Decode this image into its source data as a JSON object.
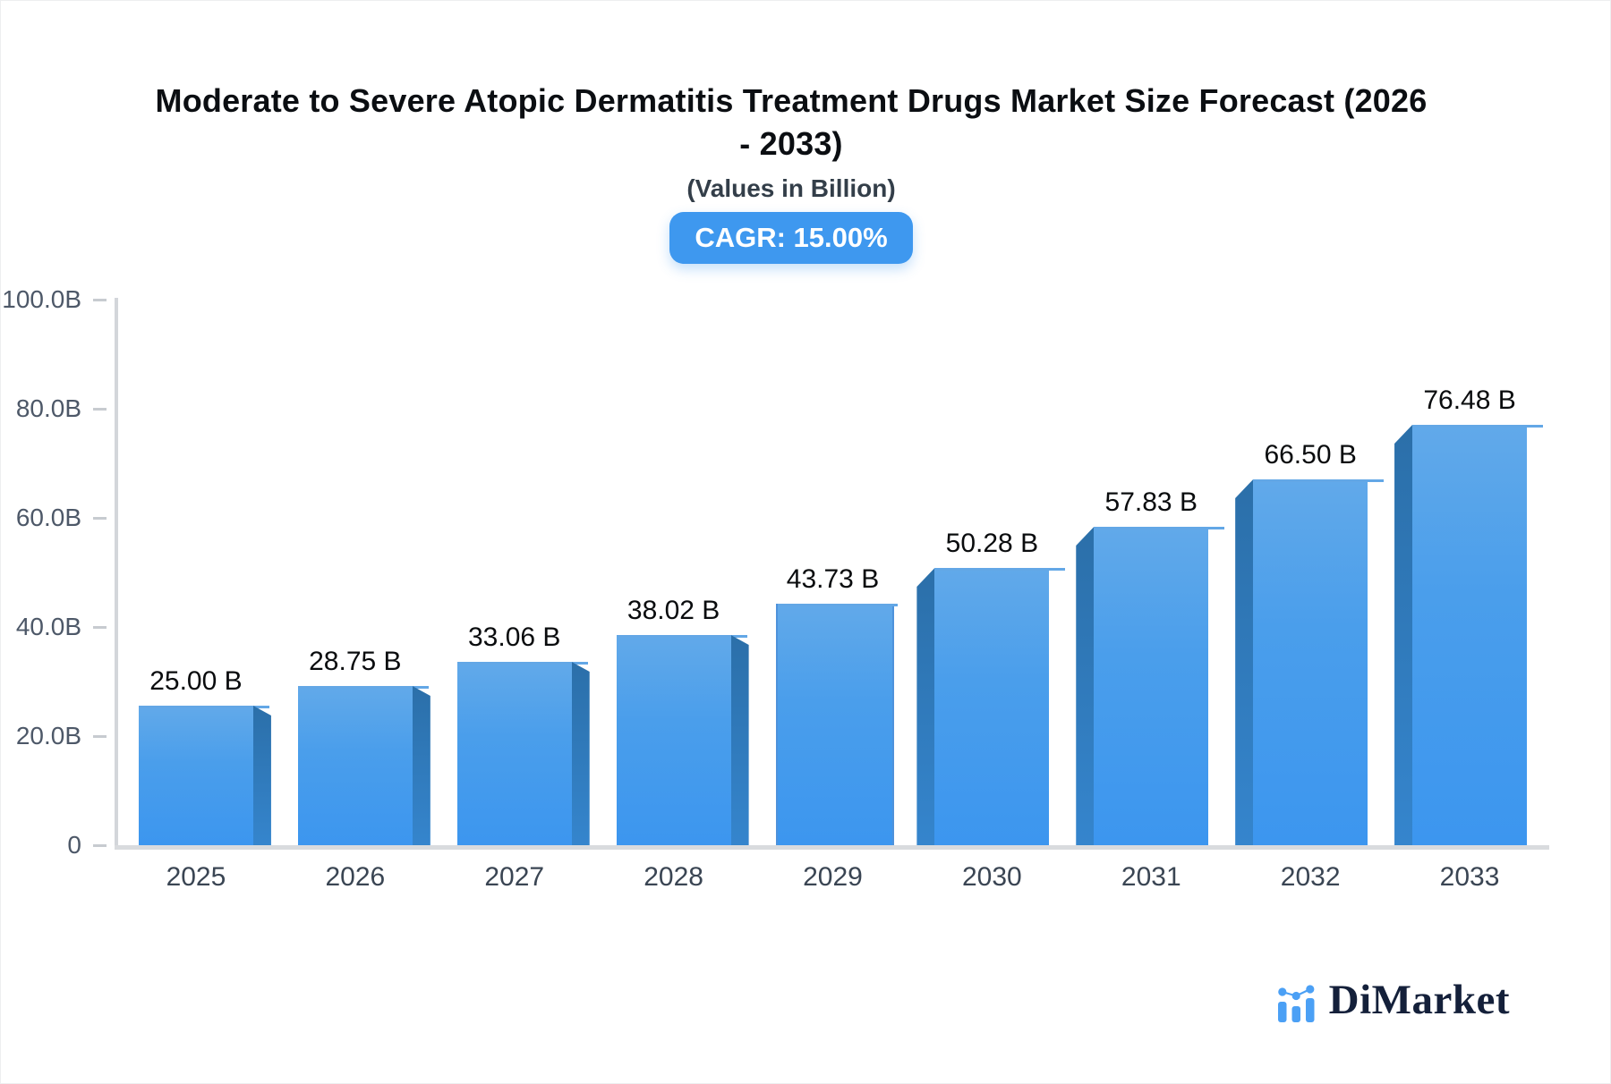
{
  "header": {
    "title_lines": [
      "Moderate to Severe Atopic Dermatitis Treatment Drugs Market Size Forecast (2026",
      "- 2033)"
    ],
    "subtitle": "(Values in Billion)",
    "cagr_badge": "CAGR: 15.00%"
  },
  "chart_data": {
    "type": "bar",
    "title": "Moderate to Severe Atopic Dermatitis Treatment Drugs Market Size Forecast (2026 - 2033)",
    "subtitle": "(Values in Billion)",
    "cagr_percent": 15.0,
    "categories": [
      "2025",
      "2026",
      "2027",
      "2028",
      "2029",
      "2030",
      "2031",
      "2032",
      "2033"
    ],
    "values": [
      25.0,
      28.75,
      33.06,
      38.02,
      43.73,
      50.28,
      57.83,
      66.5,
      76.48
    ],
    "value_labels": [
      "25.00 B",
      "28.75 B",
      "33.06 B",
      "38.02 B",
      "43.73 B",
      "50.28 B",
      "57.83 B",
      "66.50 B",
      "76.48 B"
    ],
    "xlabel": "",
    "ylabel": "",
    "ylim": [
      0,
      100
    ],
    "y_axis": {
      "tick_labels": [
        "100.0B",
        "80.0B",
        "60.0B",
        "40.0B",
        "20.0B",
        "0"
      ],
      "tick_values": [
        100,
        80,
        60,
        40,
        20,
        0
      ]
    },
    "grid": false,
    "legend": false
  },
  "colors": {
    "bar_face_top": "#61a9ea",
    "bar_face_bottom": "#3c96ef",
    "bar_side": "#2e78ba",
    "badge_bg": "#3e98ef",
    "badge_text": "#ffffff",
    "axis_line": "#d3d6da",
    "title_text": "#0b0e12",
    "axis_label_text": "#4d5868",
    "logo_blue": "#4ba0f5",
    "logo_navy": "#14203a"
  },
  "logo": {
    "text": "DiMarket"
  }
}
